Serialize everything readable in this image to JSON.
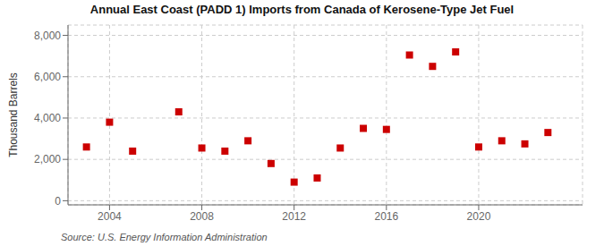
{
  "chart_data": {
    "type": "scatter",
    "title": "Annual East Coast (PADD 1) Imports from Canada of Kerosene-Type Jet Fuel",
    "y_label": "Thousand Barrels",
    "source": "Source: U.S. Energy Information Administration",
    "x": [
      2003,
      2004,
      2005,
      2007,
      2008,
      2009,
      2010,
      2011,
      2012,
      2013,
      2014,
      2015,
      2016,
      2017,
      2018,
      2019,
      2020,
      2021,
      2022,
      2023
    ],
    "values": [
      2600,
      3800,
      2400,
      4300,
      2550,
      2400,
      2900,
      1800,
      900,
      1100,
      2550,
      3500,
      3450,
      7050,
      6500,
      7200,
      2600,
      2900,
      2750,
      3300
    ],
    "color": "#cc0000",
    "marker": "square",
    "grid": true,
    "xlim": [
      2002.2,
      2024.5
    ],
    "xticks": [
      2004,
      2008,
      2012,
      2016,
      2020
    ],
    "ylim": [
      -200,
      8500
    ],
    "yticks": [
      0,
      {
        "value": 2000,
        "label": "2,000"
      },
      {
        "value": 4000,
        "label": "4,000"
      },
      {
        "value": 6000,
        "label": "6,000"
      },
      {
        "value": 8000,
        "label": "8,000"
      }
    ]
  }
}
